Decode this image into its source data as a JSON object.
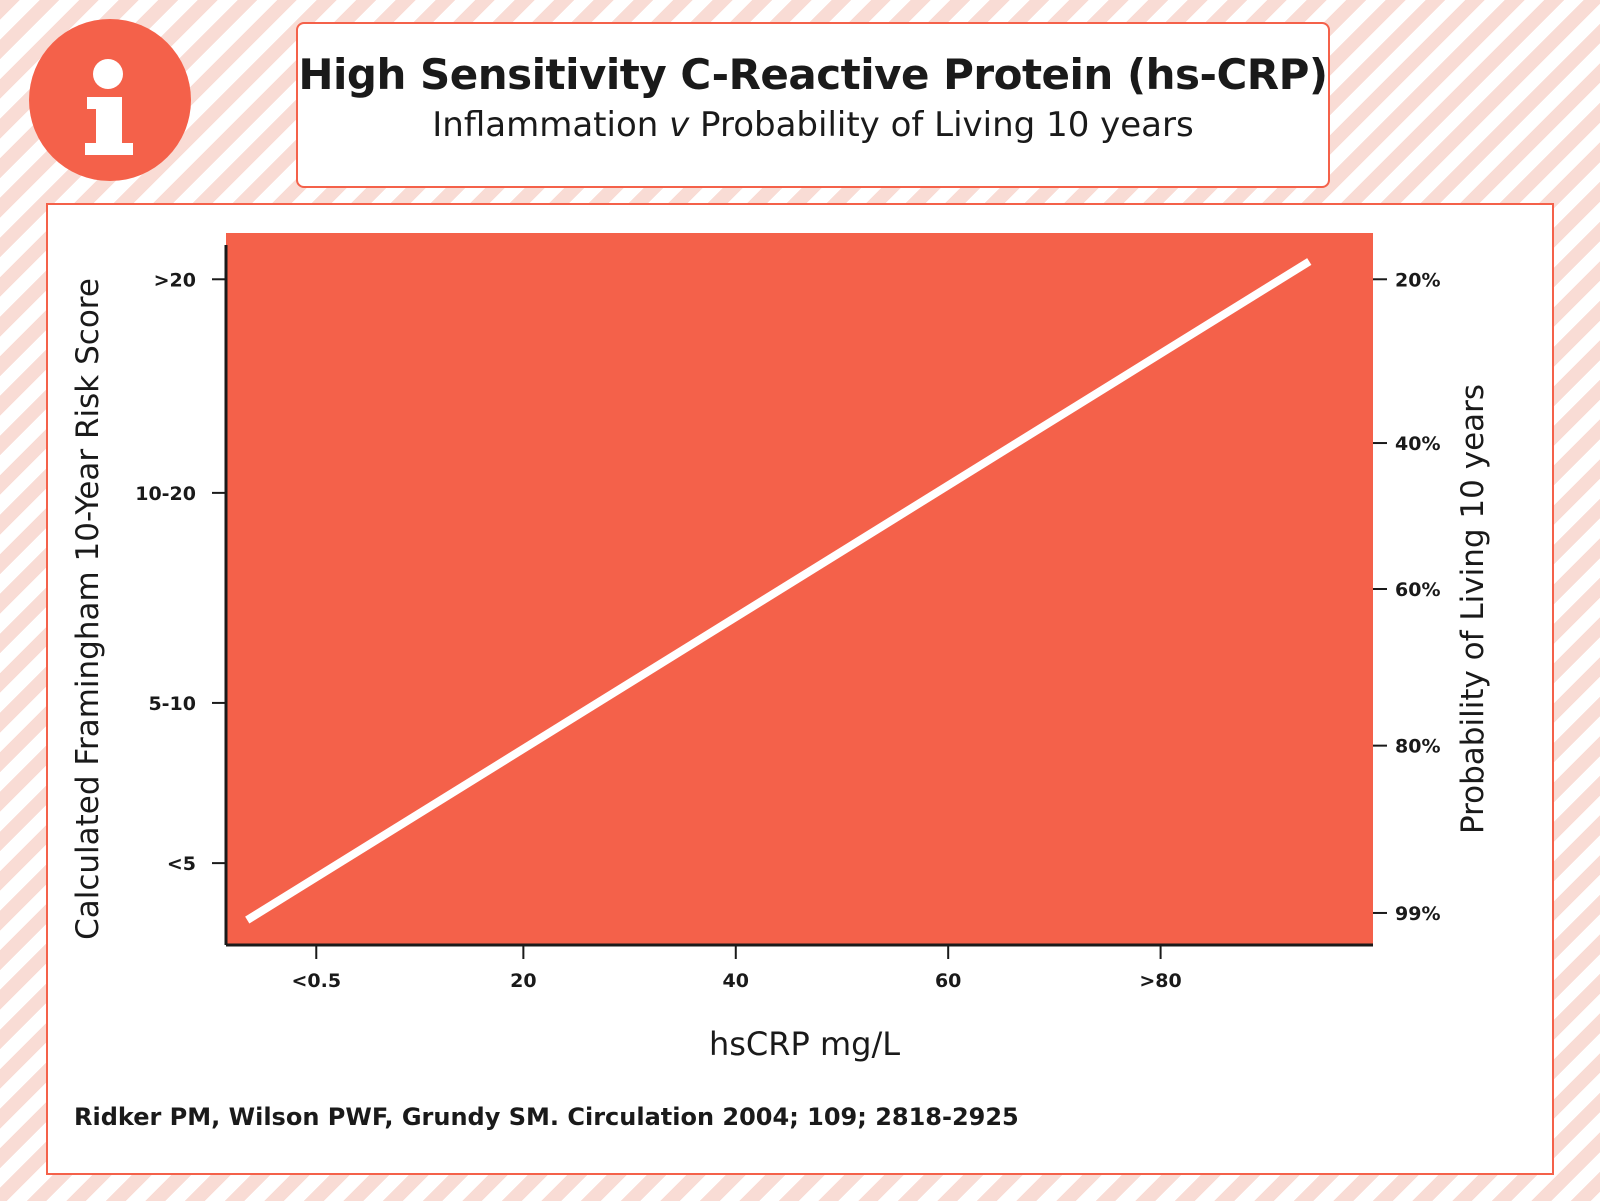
{
  "header": {
    "title": "High Sensitivity C-Reactive Protein (hs-CRP)",
    "subtitle_prefix": "Inflammation ",
    "subtitle_italic": "v",
    "subtitle_suffix": " Probability of Living 10 years"
  },
  "badge": {
    "icon": "info-icon",
    "color": "#f4614a"
  },
  "citation": "Ridker PM, Wilson PWF, Grundy SM. Circulation 2004; 109; 2818-2925",
  "colors": {
    "accent": "#f4614a",
    "line": "#ffffff",
    "axis": "#1a1a1a"
  },
  "chart_data": {
    "type": "line",
    "title": "High Sensitivity C-Reactive Protein (hs-CRP)",
    "subtitle": "Inflammation v Probability of Living 10 years",
    "xlabel": "hsCRP mg/L",
    "ylabel_left": "Calculated Framingham 10-Year Risk Score",
    "ylabel_right": "Probability of Living 10 years",
    "x_ticks": [
      {
        "label": "<0.5",
        "value": 0.5
      },
      {
        "label": "20",
        "value": 20
      },
      {
        "label": "40",
        "value": 40
      },
      {
        "label": "60",
        "value": 60
      },
      {
        "label": ">80",
        "value": 80
      }
    ],
    "y_left_ticks": [
      {
        "label": "<5",
        "value": 0.885
      },
      {
        "label": "5-10",
        "value": 0.66
      },
      {
        "label": "10-20",
        "value": 0.365
      },
      {
        "label": ">20",
        "value": 0.065
      }
    ],
    "y_right_ticks": [
      {
        "label": "20%",
        "value": 0.065
      },
      {
        "label": "40%",
        "value": 0.295
      },
      {
        "label": "60%",
        "value": 0.5
      },
      {
        "label": "80%",
        "value": 0.72
      },
      {
        "label": "99%",
        "value": 0.955
      }
    ],
    "xlim": [
      -8,
      100
    ],
    "series": [
      {
        "x": [
          -6,
          94
        ],
        "y": [
          0.965,
          0.04
        ]
      }
    ],
    "grid": false,
    "background": "#f4614a"
  }
}
